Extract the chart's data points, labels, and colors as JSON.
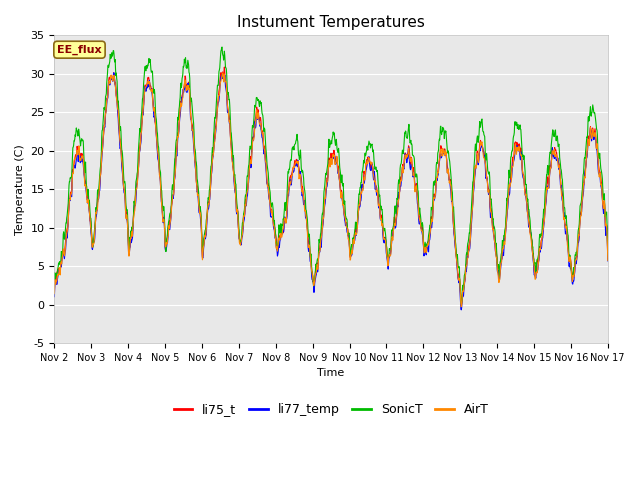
{
  "title": "Instument Temperatures",
  "xlabel": "Time",
  "ylabel": "Temperature (C)",
  "ylim": [
    -5,
    35
  ],
  "annotation": "EE_flux",
  "background_color": "#e8e8e8",
  "fig_bg": "#ffffff",
  "series_colors": {
    "li75_t": "#ff0000",
    "li77_temp": "#0000ff",
    "SonicT": "#00bb00",
    "AirT": "#ff8800"
  },
  "xtick_labels": [
    "Nov 2",
    "Nov 3",
    "Nov 4",
    "Nov 5",
    "Nov 6",
    "Nov 7",
    "Nov 8",
    "Nov 9",
    "Nov 10",
    "Nov 11",
    "Nov 12",
    "Nov 13",
    "Nov 14",
    "Nov 15",
    "Nov 16",
    "Nov 17"
  ],
  "ytick_labels": [
    -5,
    0,
    5,
    10,
    15,
    20,
    25,
    30,
    35
  ],
  "n_points": 1440,
  "seed": 7
}
